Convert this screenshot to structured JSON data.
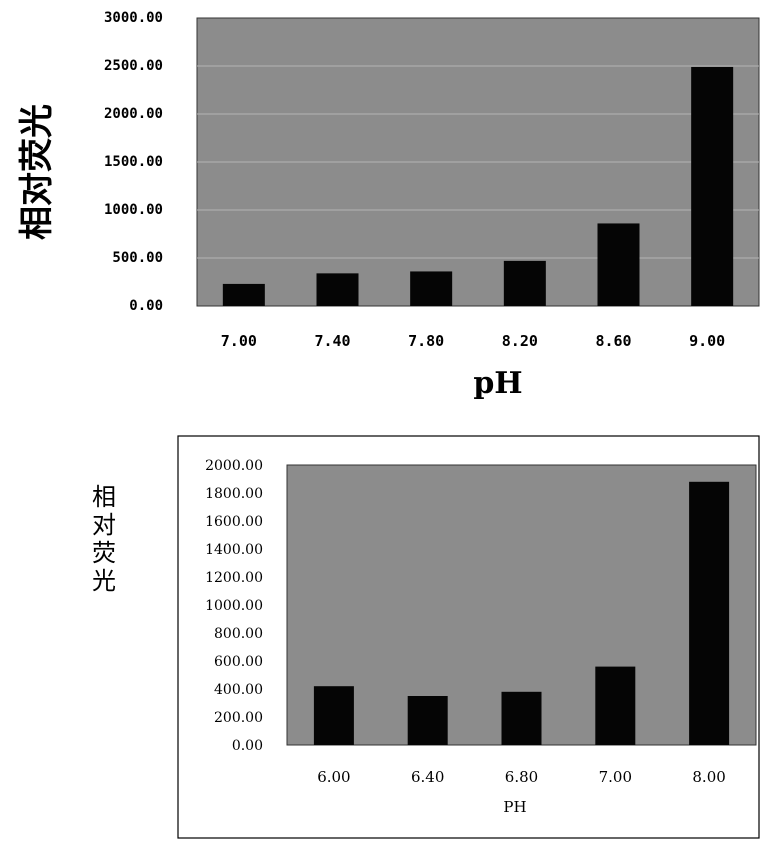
{
  "chart_data": [
    {
      "type": "bar",
      "xlabel": "pH",
      "ylabel": "相对荧光",
      "ylim": [
        0,
        3000
      ],
      "yticks": [
        "3000.00",
        "2500.00",
        "2000.00",
        "1500.00",
        "1000.00",
        "500.00",
        "0.00"
      ],
      "categories": [
        "7.00",
        "7.40",
        "7.80",
        "8.20",
        "8.60",
        "9.00"
      ],
      "values": [
        230,
        340,
        360,
        470,
        860,
        2490
      ],
      "grid": true,
      "colors": {
        "plot": "#8c8c8c",
        "bar": "#050505",
        "grid": "#b5b5b5"
      }
    },
    {
      "type": "bar",
      "xlabel": "PH",
      "ylabel": "相对荧光",
      "ylim": [
        0,
        2000
      ],
      "yticks": [
        "2000.00",
        "1800.00",
        "1600.00",
        "1400.00",
        "1200.00",
        "1000.00",
        "800.00",
        "600.00",
        "400.00",
        "200.00",
        "0.00"
      ],
      "categories": [
        "6.00",
        "6.40",
        "6.80",
        "7.00",
        "8.00"
      ],
      "values": [
        420,
        350,
        380,
        560,
        1880
      ],
      "grid": false,
      "colors": {
        "plot": "#8c8c8c",
        "bar": "#050505"
      }
    }
  ]
}
